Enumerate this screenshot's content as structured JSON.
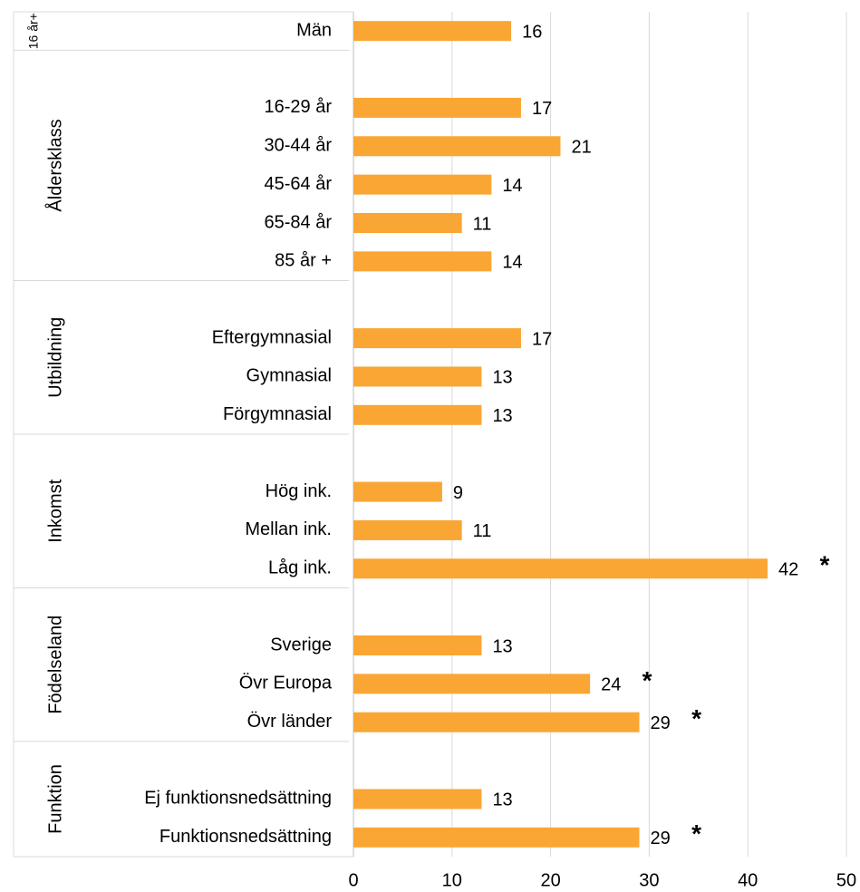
{
  "chart_data": {
    "type": "bar",
    "orientation": "horizontal",
    "color": "#FAA634",
    "groups": [
      {
        "label": "16 år+",
        "categories": [
          "Män"
        ],
        "values": [
          16
        ],
        "markers": [
          null
        ]
      },
      {
        "label": "Åldersklass",
        "categories": [
          null,
          "16-29 år",
          "30-44 år",
          "45-64 år",
          "65-84 år",
          "85 år +"
        ],
        "values": [
          null,
          17,
          21,
          14,
          11,
          14
        ],
        "markers": [
          null,
          null,
          null,
          null,
          null,
          null
        ]
      },
      {
        "label": "Utbildning",
        "categories": [
          null,
          "Eftergymnasial",
          "Gymnasial",
          "Förgymnasial"
        ],
        "values": [
          null,
          17,
          13,
          13
        ],
        "markers": [
          null,
          null,
          null,
          null
        ]
      },
      {
        "label": "Inkomst",
        "categories": [
          null,
          "Hög ink.",
          "Mellan ink.",
          "Låg ink."
        ],
        "values": [
          null,
          9,
          11,
          42
        ],
        "markers": [
          null,
          null,
          null,
          "*"
        ]
      },
      {
        "label": "Födelseland",
        "categories": [
          null,
          "Sverige",
          "Övr Europa",
          "Övr länder"
        ],
        "values": [
          null,
          13,
          24,
          29
        ],
        "markers": [
          null,
          null,
          "*",
          "*"
        ]
      },
      {
        "label": "Funktion",
        "categories": [
          null,
          "Ej funktionsnedsättning",
          "Funktionsnedsättning"
        ],
        "values": [
          null,
          13,
          29
        ],
        "markers": [
          null,
          null,
          "*"
        ]
      }
    ],
    "xlim": [
      0,
      50
    ],
    "xticks": [
      0,
      10,
      20,
      30,
      40,
      50
    ],
    "grid": true
  }
}
